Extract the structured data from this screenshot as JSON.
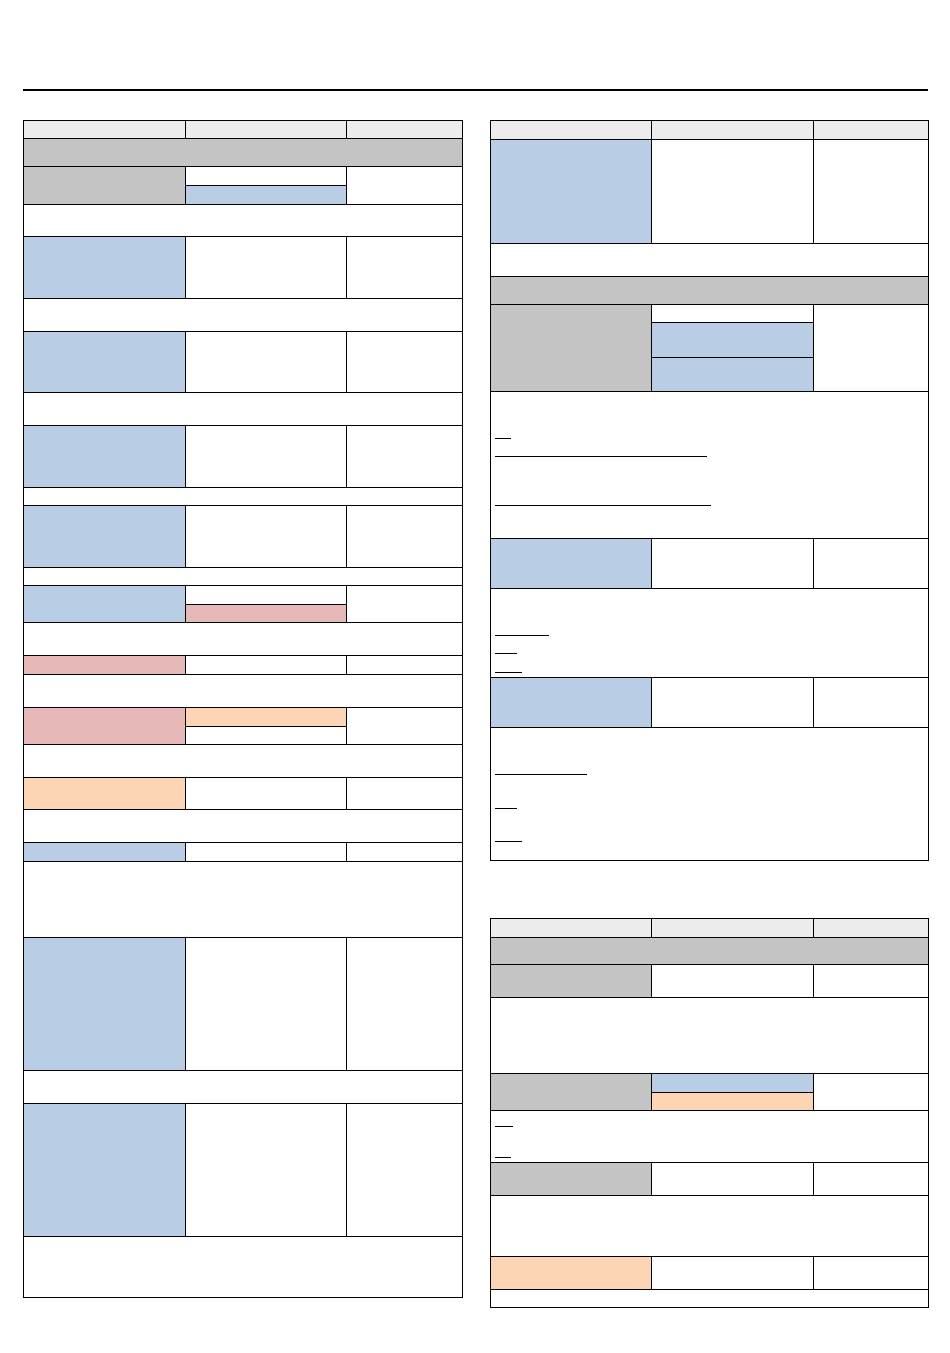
{
  "page": {
    "background": "#ffffff",
    "rule_color": "#000000"
  },
  "colors": {
    "header_fill": "#ececec",
    "section_grey": "#c4c4c4",
    "blue": "#b9cde5",
    "pink": "#e6b9b8",
    "peach": "#fcd5b5",
    "white": "#ffffff",
    "border": "#000000"
  },
  "tables": [
    {
      "id": "left-table",
      "text_visible": false
    },
    {
      "id": "right-top-table",
      "text_visible": false
    },
    {
      "id": "right-bottom-table",
      "text_visible": false
    }
  ]
}
